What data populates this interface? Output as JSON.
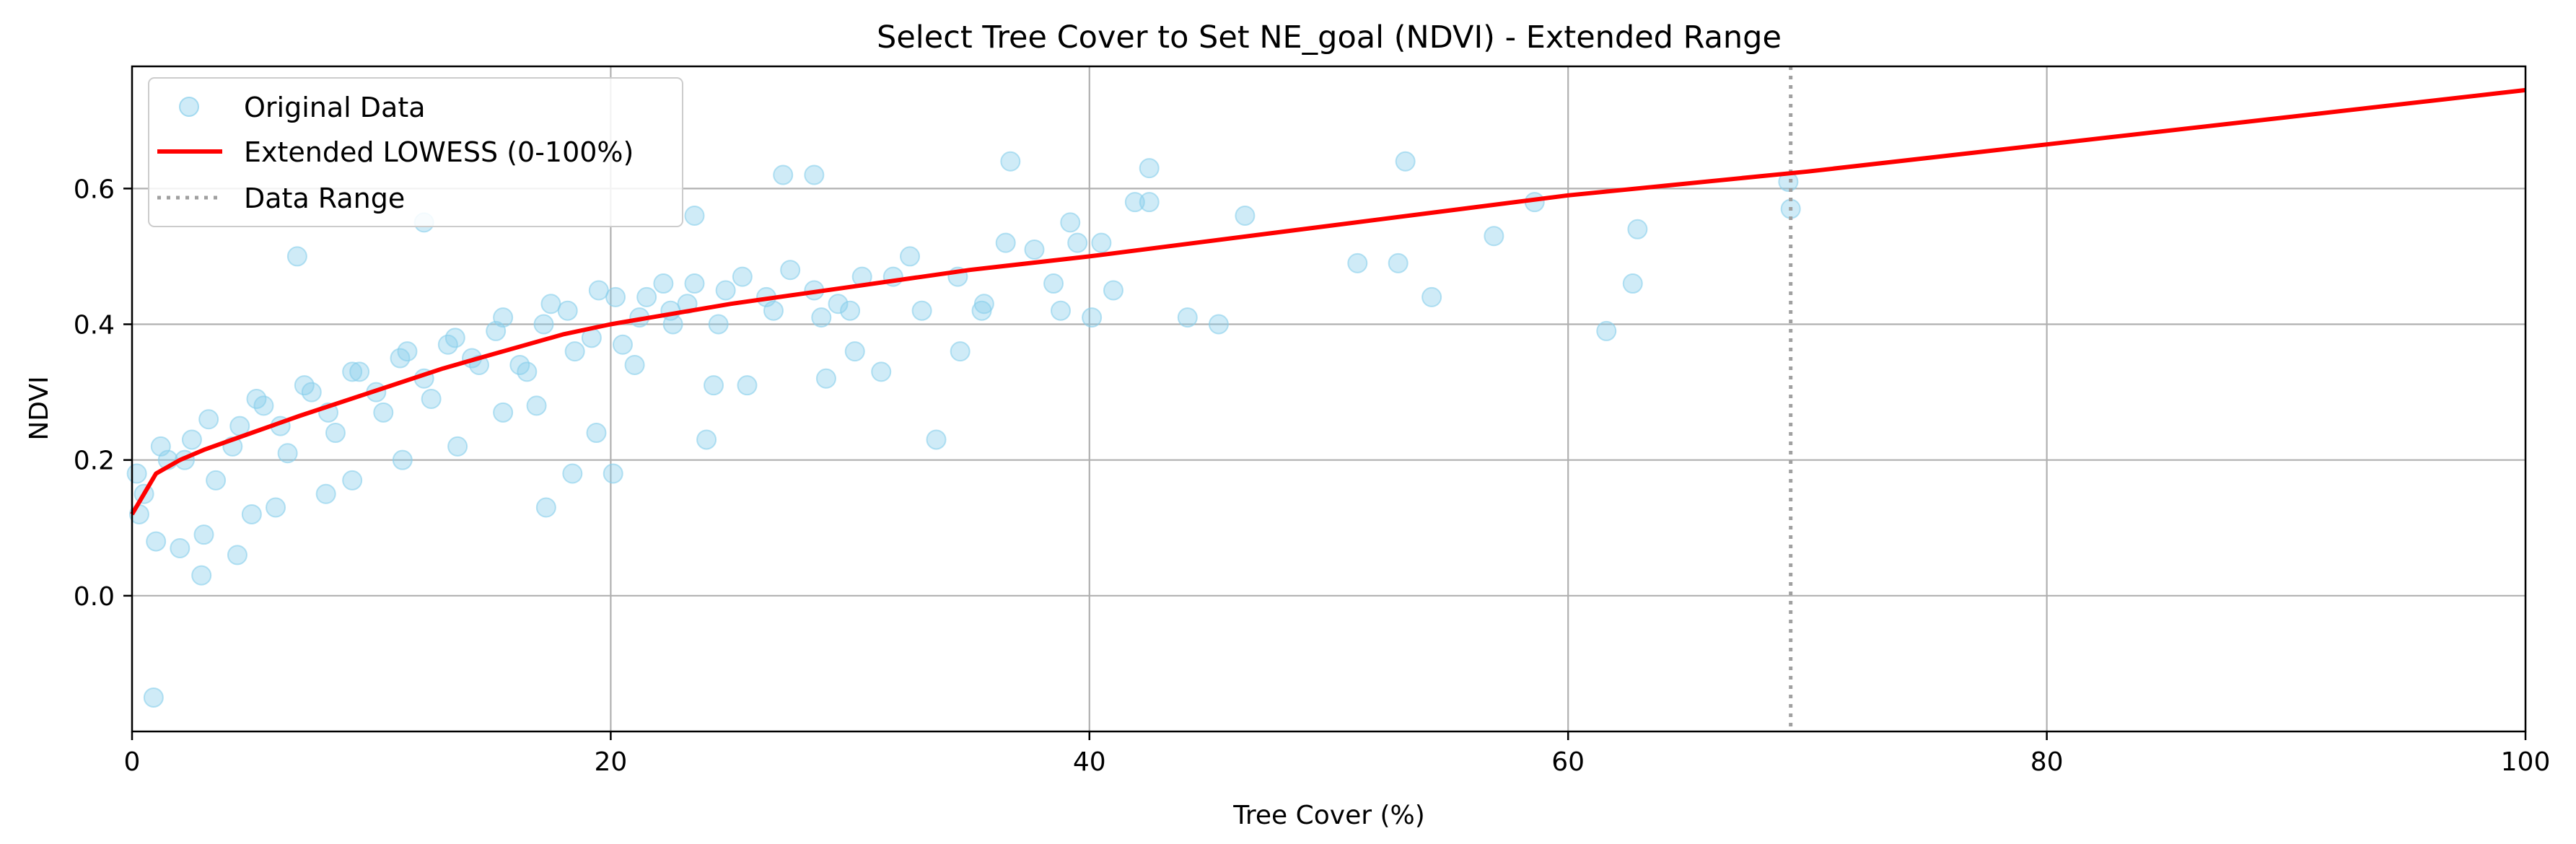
{
  "chart_data": {
    "type": "scatter",
    "title": "Select Tree Cover to Set NE_goal (NDVI) - Extended Range",
    "xlabel": "Tree Cover (%)",
    "ylabel": "NDVI",
    "xlim": [
      0,
      100
    ],
    "ylim": [
      -0.2,
      0.78
    ],
    "xticks": [
      0,
      20,
      40,
      60,
      80,
      100
    ],
    "xtick_labels": [
      "0",
      "20",
      "40",
      "60",
      "80",
      "100"
    ],
    "yticks": [
      0.0,
      0.2,
      0.4,
      0.6
    ],
    "ytick_labels": [
      "0.0",
      "0.2",
      "0.4",
      "0.6"
    ],
    "grid": true,
    "legend_position": "top-left",
    "legend": [
      {
        "label": "Original Data",
        "kind": "marker",
        "color": "#87ceeb"
      },
      {
        "label": "Extended LOWESS (0-100%)",
        "kind": "line",
        "color": "#ff0000"
      },
      {
        "label": "Data Range",
        "kind": "dotted",
        "color": "#a0a0a0"
      }
    ],
    "colors": {
      "points": "#87ceeb",
      "lowess": "#ff0000",
      "data_range": "#a0a0a0",
      "grid": "#b0b0b0"
    },
    "series": [
      {
        "name": "Extended LOWESS (0-100%)",
        "x": [
          0,
          0.5,
          1,
          2,
          3,
          5,
          7,
          10,
          13,
          15,
          18,
          20,
          25,
          30,
          35,
          40,
          50,
          60,
          70,
          80,
          90,
          100
        ],
        "y": [
          0.12,
          0.15,
          0.18,
          0.2,
          0.215,
          0.24,
          0.265,
          0.3,
          0.335,
          0.355,
          0.385,
          0.4,
          0.43,
          0.455,
          0.48,
          0.5,
          0.545,
          0.59,
          0.625,
          0.665,
          0.705,
          0.745
        ]
      },
      {
        "name": "Original Data",
        "x": [
          0.9,
          2.9,
          4.4,
          17.3,
          20.1,
          24.0,
          33.6,
          6.9,
          12.2,
          23.5,
          27.2,
          28.5,
          36.7,
          42.5,
          53.2,
          58.6,
          62.9,
          69.2,
          69.3,
          61.6,
          54.3,
          51.2,
          45.4,
          44.1,
          41.9,
          40.1,
          39.2,
          37.7,
          35.6,
          34.6,
          31.3,
          30.2,
          29.0,
          25.7,
          24.3,
          22.6,
          21.0,
          19.4,
          18.4,
          16.9,
          15.5,
          13.6,
          11.3,
          9.2,
          8.1,
          6.0,
          5.0,
          3.0,
          2.0,
          1.0,
          0.3,
          0.2,
          0.5,
          1.5,
          2.5,
          3.5,
          4.5,
          5.5,
          6.5,
          7.5,
          8.5,
          9.5,
          10.5,
          11.5,
          12.5,
          13.5,
          14.5,
          15.5,
          16.5,
          17.5,
          18.5,
          19.5,
          20.5,
          21.5,
          22.5,
          23.5,
          24.5,
          25.5,
          26.5,
          27.5,
          28.5,
          29.5,
          30.5,
          32.5,
          34.5,
          36.5,
          38.5,
          40.5,
          42.5,
          46.5,
          52.9,
          56.9,
          62.7,
          41.0,
          39.5,
          38.8,
          35.5,
          33.0,
          31.8,
          30.0,
          1.2,
          2.2,
          3.2,
          4.2,
          5.2,
          6.2,
          7.2,
          8.2,
          9.2,
          10.2,
          11.2,
          12.2,
          13.2,
          14.2,
          15.2,
          16.2,
          17.2,
          18.2,
          19.2,
          20.2,
          21.2,
          22.2,
          23.2,
          24.8,
          26.8,
          28.8
        ],
        "y": [
          -0.15,
          0.03,
          0.06,
          0.13,
          0.18,
          0.23,
          0.23,
          0.5,
          0.55,
          0.56,
          0.62,
          0.62,
          0.64,
          0.63,
          0.64,
          0.58,
          0.54,
          0.61,
          0.57,
          0.39,
          0.44,
          0.49,
          0.4,
          0.41,
          0.58,
          0.41,
          0.55,
          0.51,
          0.43,
          0.36,
          0.33,
          0.36,
          0.32,
          0.31,
          0.31,
          0.4,
          0.34,
          0.24,
          0.18,
          0.28,
          0.27,
          0.22,
          0.2,
          0.17,
          0.15,
          0.13,
          0.12,
          0.09,
          0.07,
          0.08,
          0.12,
          0.18,
          0.15,
          0.2,
          0.23,
          0.17,
          0.25,
          0.28,
          0.21,
          0.3,
          0.24,
          0.33,
          0.27,
          0.36,
          0.29,
          0.38,
          0.34,
          0.41,
          0.33,
          0.43,
          0.36,
          0.45,
          0.37,
          0.44,
          0.42,
          0.46,
          0.4,
          0.47,
          0.44,
          0.48,
          0.45,
          0.43,
          0.47,
          0.5,
          0.47,
          0.52,
          0.46,
          0.52,
          0.58,
          0.56,
          0.49,
          0.53,
          0.46,
          0.45,
          0.52,
          0.42,
          0.42,
          0.42,
          0.47,
          0.42,
          0.22,
          0.2,
          0.26,
          0.22,
          0.29,
          0.25,
          0.31,
          0.27,
          0.33,
          0.3,
          0.35,
          0.32,
          0.37,
          0.35,
          0.39,
          0.34,
          0.4,
          0.42,
          0.38,
          0.44,
          0.41,
          0.46,
          0.43,
          0.45,
          0.42,
          0.41
        ]
      }
    ],
    "data_range_x": 69.3
  }
}
